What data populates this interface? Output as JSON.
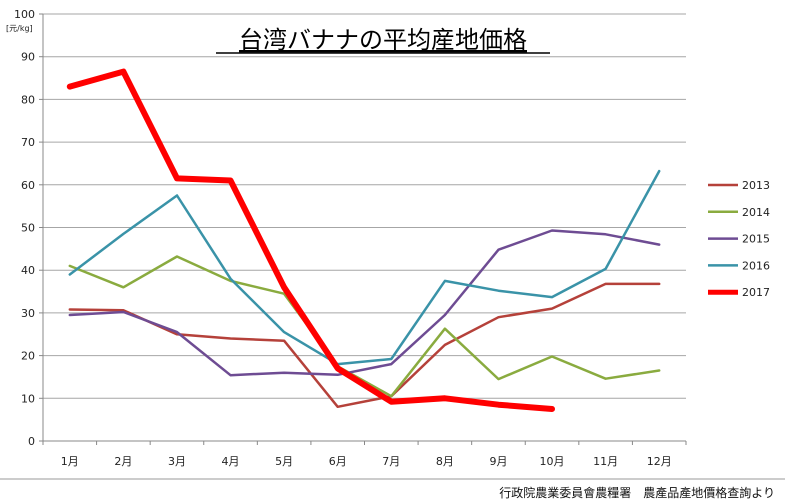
{
  "chart_data": {
    "type": "line",
    "title": "台湾バナナの平均産地価格",
    "y_unit": "[元/kg]",
    "categories": [
      "1月",
      "2月",
      "3月",
      "4月",
      "5月",
      "6月",
      "7月",
      "8月",
      "9月",
      "10月",
      "11月",
      "12月"
    ],
    "ylim": [
      0,
      100
    ],
    "yticks": [
      "0",
      "10",
      "20",
      "30",
      "40",
      "50",
      "60",
      "70",
      "80",
      "90",
      "100"
    ],
    "grid": true,
    "legend_position": "right",
    "series": [
      {
        "name": "2013",
        "color": "#b5413a",
        "width": 2.5,
        "values": [
          30.8,
          30.6,
          25,
          24,
          23.5,
          8,
          10.5,
          22.5,
          29,
          31,
          36.8,
          36.8
        ]
      },
      {
        "name": "2014",
        "color": "#8aab3f",
        "width": 2.5,
        "values": [
          41,
          36,
          43.2,
          37.5,
          34.5,
          17.5,
          10.5,
          26.3,
          14.5,
          19.8,
          14.6,
          16.5
        ]
      },
      {
        "name": "2015",
        "color": "#6e4c93",
        "width": 2.5,
        "values": [
          29.5,
          30.2,
          25.5,
          15.4,
          16,
          15.5,
          18,
          29.5,
          44.8,
          49.3,
          48.4,
          46
        ]
      },
      {
        "name": "2016",
        "color": "#3a93a8",
        "width": 2.5,
        "values": [
          39,
          48.5,
          57.5,
          38,
          25.5,
          18,
          19.2,
          37.5,
          35.2,
          33.7,
          40.3,
          63.2
        ]
      },
      {
        "name": "2017",
        "color": "#ff0000",
        "width": 6,
        "values": [
          83,
          86.5,
          61.5,
          61,
          36,
          17,
          9.2,
          10,
          8.5,
          7.5,
          null,
          null
        ]
      }
    ],
    "source": "行政院農業委員會農糧署　農產品產地價格查詢より"
  }
}
